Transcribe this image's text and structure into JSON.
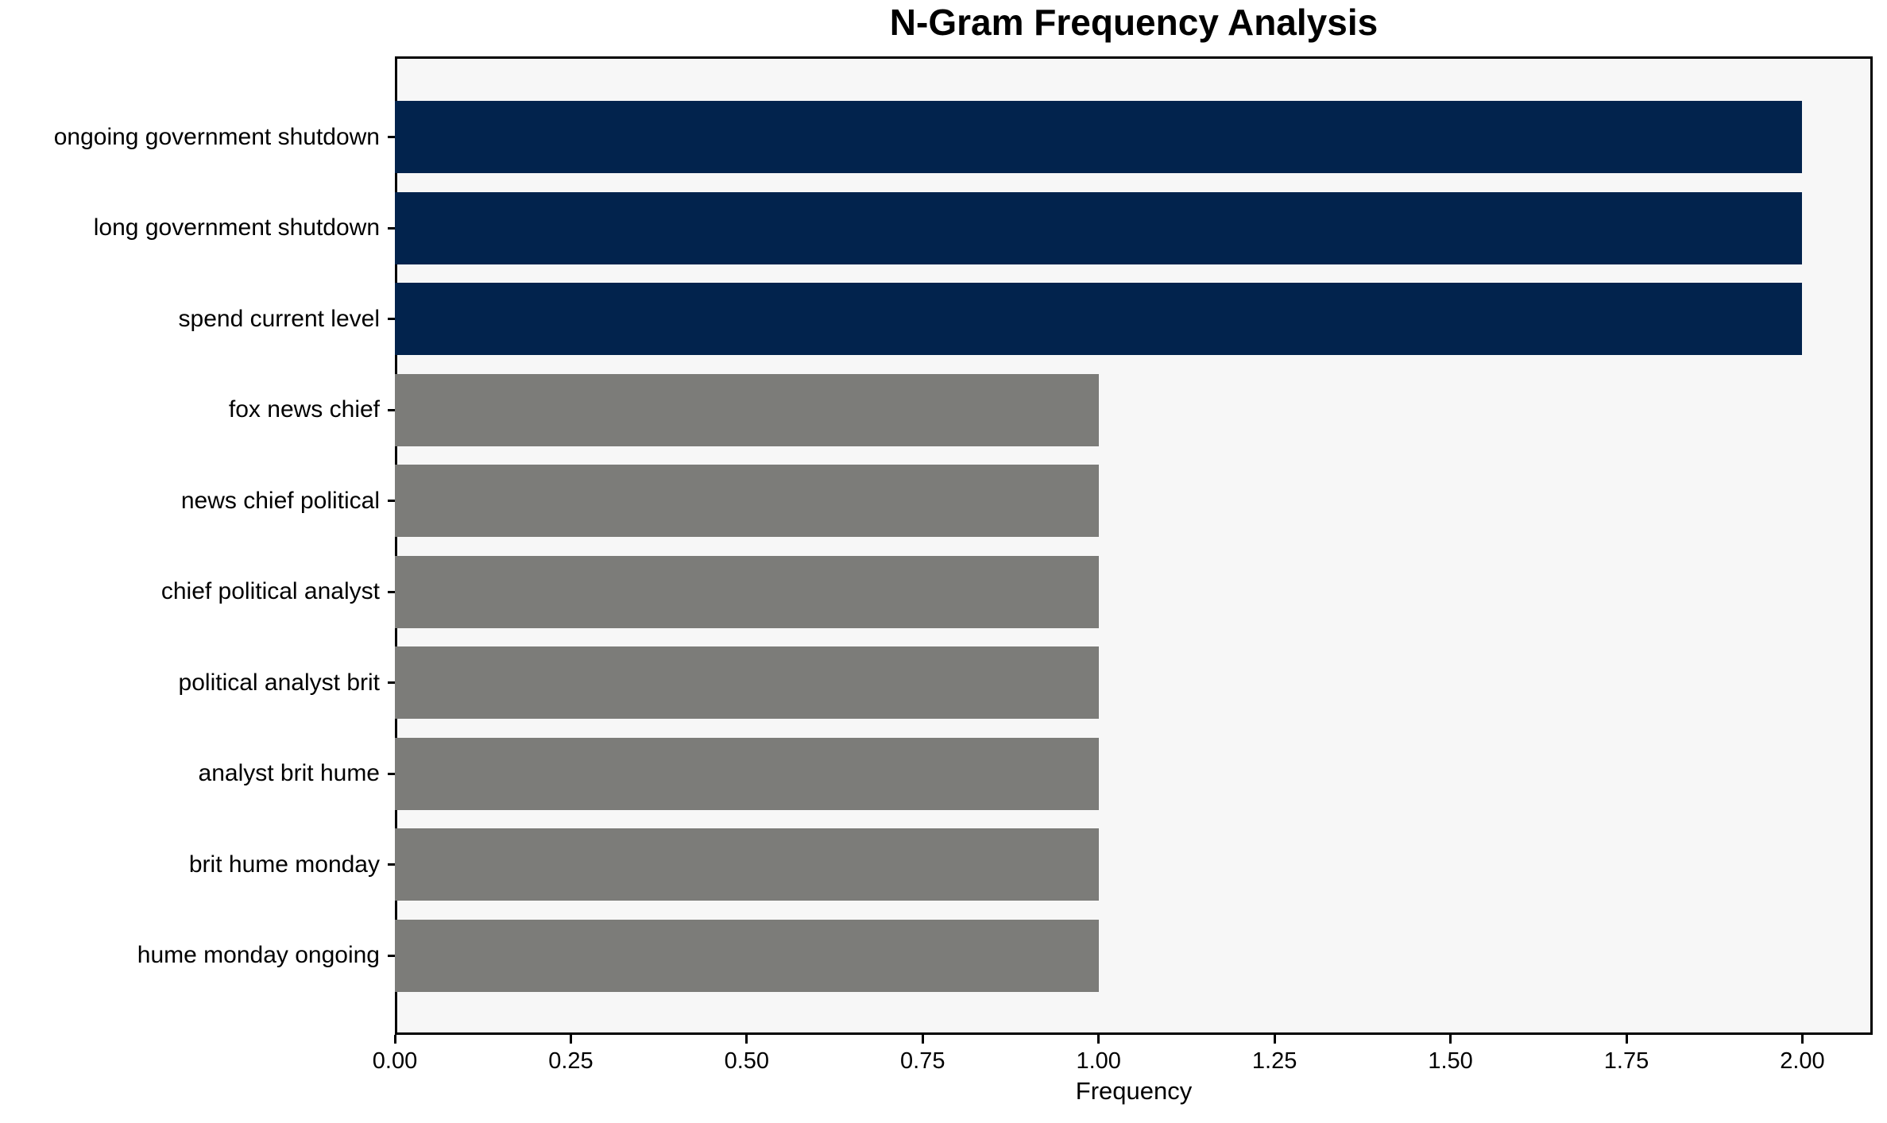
{
  "chart_data": {
    "type": "bar",
    "orientation": "horizontal",
    "title": "N-Gram Frequency Analysis",
    "xlabel": "Frequency",
    "ylabel": "",
    "categories": [
      "ongoing government shutdown",
      "long government shutdown",
      "spend current level",
      "fox news chief",
      "news chief political",
      "chief political analyst",
      "political analyst brit",
      "analyst brit hume",
      "brit hume monday",
      "hume monday ongoing"
    ],
    "values": [
      2,
      2,
      2,
      1,
      1,
      1,
      1,
      1,
      1,
      1
    ],
    "bar_colors": [
      "#02234d",
      "#02234d",
      "#02234d",
      "#7c7c79",
      "#7c7c79",
      "#7c7c79",
      "#7c7c79",
      "#7c7c79",
      "#7c7c79",
      "#7c7c79"
    ],
    "xlim": [
      0,
      2.1
    ],
    "xtick_labels": [
      "0.00",
      "0.25",
      "0.50",
      "0.75",
      "1.00",
      "1.25",
      "1.50",
      "1.75",
      "2.00"
    ],
    "grid": false,
    "legend": null,
    "colors": {
      "highlight": "#02234d",
      "normal": "#7c7c79",
      "plot_background": "#f7f7f7",
      "figure_background": "#ffffff",
      "spine": "#000000",
      "text": "#000000"
    }
  }
}
